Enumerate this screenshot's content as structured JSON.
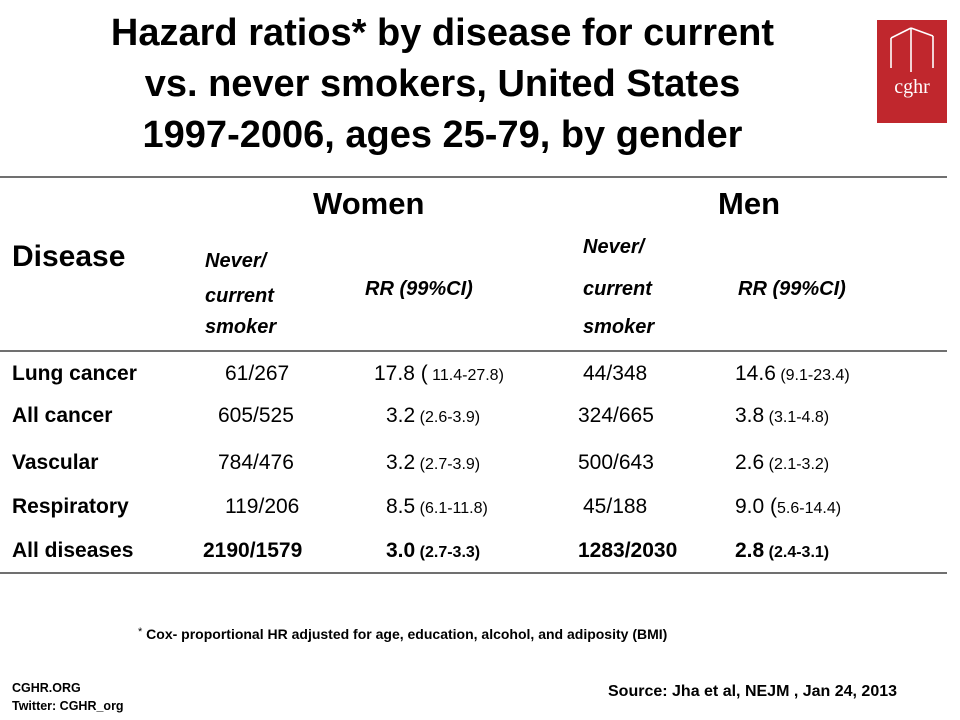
{
  "title": {
    "line1": "Hazard ratios* by disease for current",
    "line2": "vs. never smokers, United States",
    "line3": "1997-2006, ages 25-79, by gender"
  },
  "logo": {
    "text": "cghr"
  },
  "colors": {
    "logo_red": "#c0272d",
    "rule_gray": "#707070"
  },
  "table": {
    "groups": {
      "women": "Women",
      "men": "Men"
    },
    "disease_header": "Disease",
    "women_cols": {
      "counts_line1": "Never/",
      "counts_line2": "current",
      "counts_line3": "smoker",
      "rr": "RR (99%CI)"
    },
    "men_cols": {
      "counts_line1": "Never/",
      "counts_line2": "current",
      "counts_line3": "smoker",
      "rr": "RR (99%CI)"
    },
    "rows": [
      {
        "disease": "Lung cancer",
        "w_counts": "61/267",
        "w_rr": "17.8 (",
        "w_ci": "11.4-27.8)",
        "m_counts": "44/348",
        "m_rr": "14.6",
        "m_ci": "(9.1-23.4)"
      },
      {
        "disease": "All cancer",
        "w_counts": "605/525",
        "w_rr": "3.2",
        "w_ci": "(2.6-3.9)",
        "m_counts": "324/665",
        "m_rr": "3.8",
        "m_ci": "(3.1-4.8)"
      },
      {
        "disease": "Vascular",
        "w_counts": "784/476",
        "w_rr": "3.2",
        "w_ci": "(2.7-3.9)",
        "m_counts": "500/643",
        "m_rr": "2.6",
        "m_ci": "(2.1-3.2)"
      },
      {
        "disease": "Respiratory",
        "w_counts": "119/206",
        "w_rr": "8.5",
        "w_ci": "(6.1-11.8)",
        "m_counts": "45/188",
        "m_rr": "9.0 (",
        "m_ci": "5.6-14.4)"
      },
      {
        "disease": "All diseases",
        "w_counts": "2190/1579",
        "w_rr": "3.0",
        "w_ci": "(2.7-3.3)",
        "m_counts": "1283/2030",
        "m_rr": "2.8",
        "m_ci": "(2.4-3.1)"
      }
    ]
  },
  "footnote": {
    "mark": "*",
    "text": "Cox- proportional HR adjusted for age, education, alcohol, and adiposity (BMI)"
  },
  "source": "Source: Jha et al, NEJM , Jan 24, 2013",
  "org": {
    "site": "CGHR.ORG",
    "twitter": "Twitter: CGHR_org"
  }
}
